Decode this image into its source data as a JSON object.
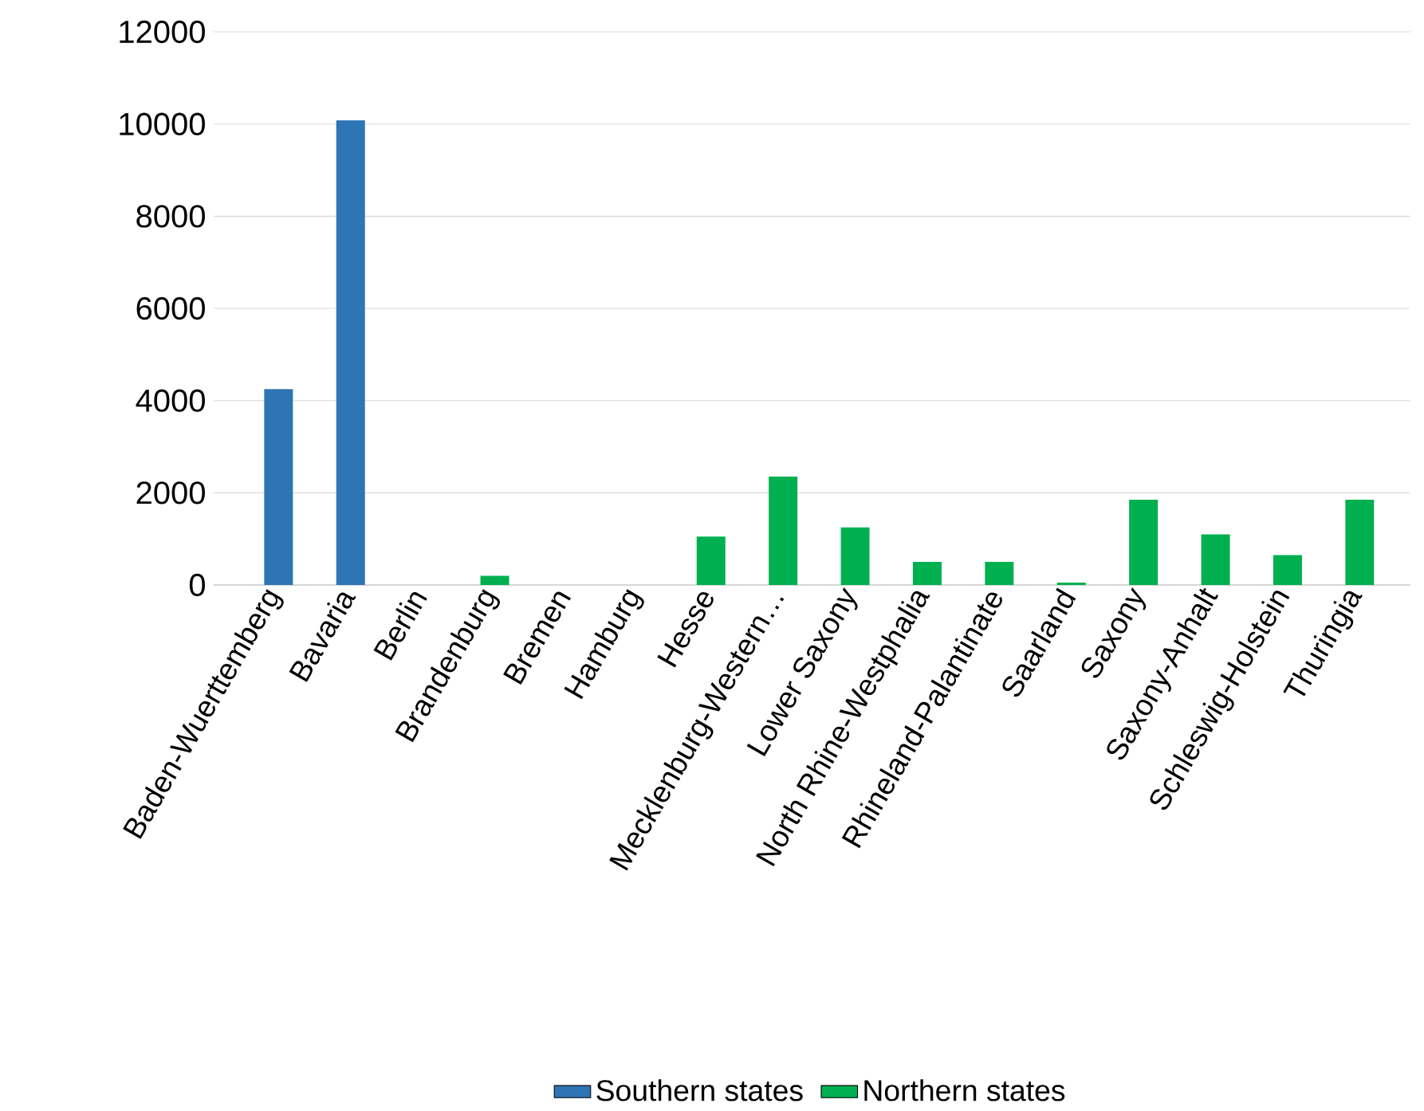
{
  "chart_data": {
    "type": "bar",
    "categories": [
      "Baden-Wuerttemberg",
      "Bavaria",
      "Berlin",
      "Brandenburg",
      "Bremen",
      "Hamburg",
      "Hesse",
      "Mecklenburg-Western…",
      "Lower Saxony",
      "North Rhine-Westphalia",
      "Rhineland-Palantinate",
      "Saarland",
      "Saxony",
      "Saxony-Anhalt",
      "Schleswig-Holstein",
      "Thuringia"
    ],
    "series": [
      {
        "name": "Southern states",
        "color": "#2e75b6",
        "values": [
          4250,
          10080,
          null,
          null,
          null,
          null,
          null,
          null,
          null,
          null,
          null,
          null,
          null,
          null,
          null,
          null
        ]
      },
      {
        "name": "Northern states",
        "color": "#00b050",
        "values": [
          null,
          null,
          0,
          200,
          0,
          0,
          1050,
          2350,
          1250,
          500,
          500,
          50,
          1850,
          1100,
          650,
          1850
        ]
      }
    ],
    "ylim": [
      0,
      12000
    ],
    "yticks": [
      0,
      2000,
      4000,
      6000,
      8000,
      10000,
      12000
    ],
    "grid": "y",
    "legend": "bottom"
  }
}
